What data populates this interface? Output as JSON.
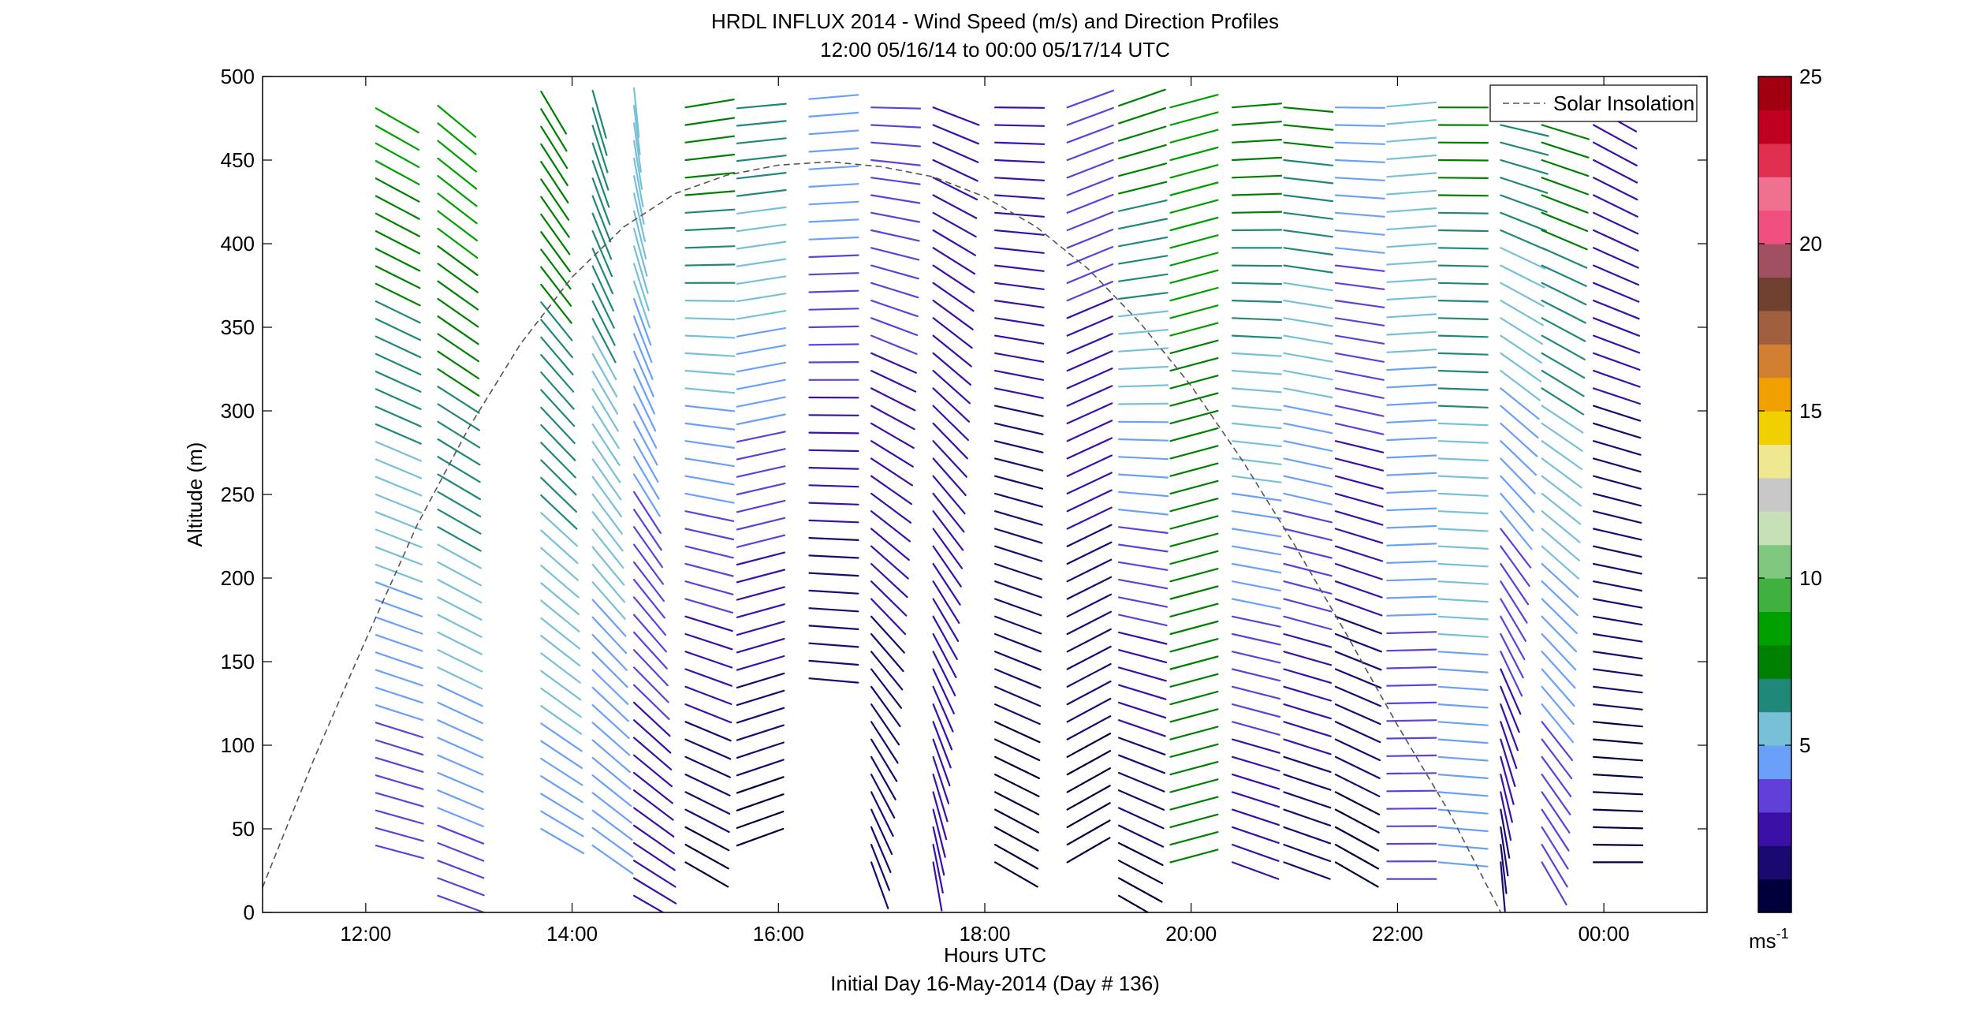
{
  "chart_data": {
    "type": "wind barb profile",
    "title_line1": "HRDL INFLUX 2014 - Wind Speed (m/s) and Direction Profiles",
    "title_line2": "12:00 05/16/14 to 00:00 05/17/14  UTC",
    "xlabel": "Hours UTC",
    "xlabel2": "Initial Day 16-May-2014 (Day # 136)",
    "ylabel": "Altitude (m)",
    "x_range_hours": [
      11.0,
      25.0
    ],
    "y_range_m": [
      0,
      500
    ],
    "x_ticks": [
      {
        "hour": 12,
        "label": "12:00"
      },
      {
        "hour": 14,
        "label": "14:00"
      },
      {
        "hour": 16,
        "label": "16:00"
      },
      {
        "hour": 18,
        "label": "18:00"
      },
      {
        "hour": 20,
        "label": "20:00"
      },
      {
        "hour": 22,
        "label": "22:00"
      },
      {
        "hour": 24,
        "label": "00:00"
      }
    ],
    "y_ticks": [
      0,
      50,
      100,
      150,
      200,
      250,
      300,
      350,
      400,
      450,
      500
    ],
    "legend": {
      "label": "Solar Insolation",
      "position": "top-right"
    },
    "colorbar": {
      "range": [
        0,
        25
      ],
      "ticks": [
        5,
        10,
        15,
        20,
        25
      ],
      "units_label": "ms",
      "units_exponent": "-1",
      "colors": [
        "#00003c",
        "#1a0a70",
        "#3a10a8",
        "#6040d8",
        "#6aa0f8",
        "#78c0d8",
        "#208878",
        "#008000",
        "#00a000",
        "#40b040",
        "#80c880",
        "#c8e0b8",
        "#c8c8c8",
        "#f0e890",
        "#f0d000",
        "#f0a000",
        "#d08030",
        "#a06040",
        "#704030",
        "#a05060",
        "#f05080",
        "#f07090",
        "#e03050",
        "#c00020",
        "#a00010"
      ]
    },
    "solar_insolation_curve": [
      [
        11.0,
        15
      ],
      [
        11.5,
        92
      ],
      [
        12.0,
        163
      ],
      [
        12.5,
        232
      ],
      [
        13.0,
        290
      ],
      [
        13.5,
        340
      ],
      [
        14.0,
        380
      ],
      [
        14.5,
        410
      ],
      [
        15.0,
        430
      ],
      [
        15.5,
        441
      ],
      [
        16.0,
        447
      ],
      [
        16.5,
        449
      ],
      [
        17.0,
        446
      ],
      [
        17.5,
        440
      ],
      [
        18.0,
        428
      ],
      [
        18.5,
        410
      ],
      [
        19.0,
        385
      ],
      [
        19.5,
        353
      ],
      [
        20.0,
        315
      ],
      [
        20.5,
        270
      ],
      [
        21.0,
        220
      ],
      [
        21.5,
        167
      ],
      [
        22.0,
        112
      ],
      [
        22.5,
        60
      ],
      [
        23.0,
        0
      ]
    ],
    "profiles": [
      {
        "hour": 12.1,
        "z_min": 40,
        "z_max": 490,
        "dir_top": 300,
        "dir_bot": 285,
        "spd_top": 8.5,
        "spd_bot": 3.0,
        "len": 62
      },
      {
        "hour": 12.7,
        "z_min": 10,
        "z_max": 490,
        "dir_top": 310,
        "dir_bot": 290,
        "spd_top": 9.0,
        "spd_bot": 3.5,
        "len": 62
      },
      {
        "hour": 13.7,
        "z_min": 50,
        "z_max": 500,
        "dir_top": 330,
        "dir_bot": 300,
        "spd_top": 8.0,
        "spd_bot": 4.5,
        "len": 62
      },
      {
        "hour": 14.2,
        "z_min": 40,
        "z_max": 500,
        "dir_top": 345,
        "dir_bot": 305,
        "spd_top": 7.0,
        "spd_bot": 4.0,
        "len": 62
      },
      {
        "hour": 14.6,
        "z_min": 10,
        "z_max": 500,
        "dir_top": 355,
        "dir_bot": 300,
        "spd_top": 6.0,
        "spd_bot": 2.0,
        "len": 62
      },
      {
        "hour": 15.1,
        "z_min": 30,
        "z_max": 490,
        "dir_top": 260,
        "dir_bot": 300,
        "spd_top": 8.0,
        "spd_bot": 0.5,
        "len": 62
      },
      {
        "hour": 15.6,
        "z_min": 40,
        "z_max": 490,
        "dir_top": 265,
        "dir_bot": 250,
        "spd_top": 7.0,
        "spd_bot": 0.5,
        "len": 62
      },
      {
        "hour": 16.3,
        "z_min": 140,
        "z_max": 490,
        "dir_top": 265,
        "dir_bot": 275,
        "spd_top": 5.0,
        "spd_bot": 1.0,
        "len": 62
      },
      {
        "hour": 16.9,
        "z_min": 30,
        "z_max": 490,
        "dir_top": 270,
        "dir_bot": 340,
        "spd_top": 4.0,
        "spd_bot": 1.0,
        "len": 62
      },
      {
        "hour": 17.5,
        "z_min": 30,
        "z_max": 490,
        "dir_top": 290,
        "dir_bot": 350,
        "spd_top": 3.0,
        "spd_bot": 2.0,
        "len": 62
      },
      {
        "hour": 18.1,
        "z_min": 30,
        "z_max": 490,
        "dir_top": 270,
        "dir_bot": 300,
        "spd_top": 3.0,
        "spd_bot": 0.5,
        "len": 62
      },
      {
        "hour": 18.8,
        "z_min": 30,
        "z_max": 490,
        "dir_top": 250,
        "dir_bot": 240,
        "spd_top": 4.0,
        "spd_bot": 0.5,
        "len": 62
      },
      {
        "hour": 19.3,
        "z_min": 10,
        "z_max": 490,
        "dir_top": 250,
        "dir_bot": 300,
        "spd_top": 8.0,
        "spd_bot": 0.5,
        "len": 62
      },
      {
        "hour": 19.8,
        "z_min": 30,
        "z_max": 490,
        "dir_top": 255,
        "dir_bot": 255,
        "spd_top": 8.5,
        "spd_bot": 7.0,
        "len": 62
      },
      {
        "hour": 20.4,
        "z_min": 30,
        "z_max": 490,
        "dir_top": 265,
        "dir_bot": 290,
        "spd_top": 8.0,
        "spd_bot": 2.0,
        "len": 62
      },
      {
        "hour": 20.9,
        "z_min": 30,
        "z_max": 490,
        "dir_top": 275,
        "dir_bot": 290,
        "spd_top": 7.5,
        "spd_bot": 1.0,
        "len": 62
      },
      {
        "hour": 21.4,
        "z_min": 30,
        "z_max": 490,
        "dir_top": 270,
        "dir_bot": 300,
        "spd_top": 5.0,
        "spd_bot": 0.5,
        "len": 62
      },
      {
        "hour": 21.9,
        "z_min": 20,
        "z_max": 490,
        "dir_top": 265,
        "dir_bot": 270,
        "spd_top": 6.0,
        "spd_bot": 3.0,
        "len": 62
      },
      {
        "hour": 22.4,
        "z_min": 30,
        "z_max": 490,
        "dir_top": 270,
        "dir_bot": 275,
        "spd_top": 7.5,
        "spd_bot": 4.0,
        "len": 62
      },
      {
        "hour": 23.0,
        "z_min": 30,
        "z_max": 490,
        "dir_top": 280,
        "dir_bot": 355,
        "spd_top": 7.0,
        "spd_bot": 1.5,
        "len": 62
      },
      {
        "hour": 23.4,
        "z_min": 30,
        "z_max": 490,
        "dir_top": 285,
        "dir_bot": 330,
        "spd_top": 8.0,
        "spd_bot": 3.0,
        "len": 62
      },
      {
        "hour": 23.9,
        "z_min": 30,
        "z_max": 490,
        "dir_top": 300,
        "dir_bot": 270,
        "spd_top": 3.0,
        "spd_bot": 0.5,
        "len": 62
      }
    ]
  }
}
